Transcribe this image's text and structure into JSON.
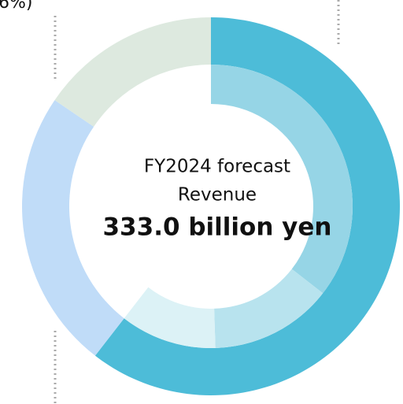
{
  "chart_data": {
    "type": "donut",
    "annotation": "6%)",
    "center_text": [
      "FY2024 forecast",
      "Revenue"
    ],
    "center_value": "333.0 billion yen",
    "series": [
      {
        "values": [
          60.5,
          24,
          15.5
        ],
        "colors": [
          "#4dbcd8",
          "#c0dcf8",
          "#dde9df"
        ]
      },
      {
        "values": [
          35.5,
          14,
          11
        ],
        "colors": [
          "#96d5e6",
          "#b8e3ee",
          "#dcf2f6"
        ]
      }
    ]
  }
}
